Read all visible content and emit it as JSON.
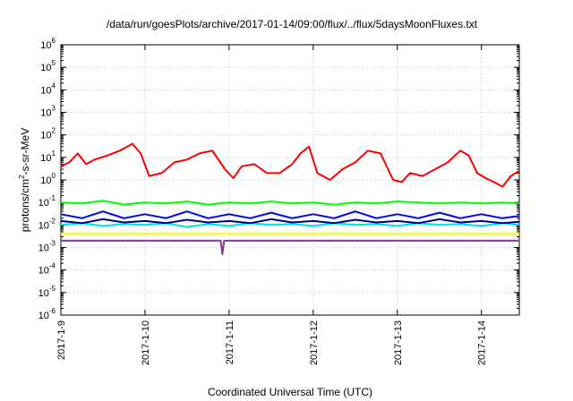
{
  "chart_data": {
    "type": "line",
    "title": "/data/run/goesPlots/archive/2017-01-14/09:00/flux/../flux/5daysMoonFluxes.txt",
    "xlabel": "Coordinated Universal Time (UTC)",
    "ylabel": {
      "base": "protons/cm",
      "sup": "2",
      "rest": "-s-sr-MeV"
    },
    "yscale": "log",
    "ylim": [
      1e-06,
      1000000.0
    ],
    "xlim": [
      0,
      5.45
    ],
    "y_ticks": [
      {
        "exp": "-6",
        "value": -6
      },
      {
        "exp": "-5",
        "value": -5
      },
      {
        "exp": "-4",
        "value": -4
      },
      {
        "exp": "-3",
        "value": -3
      },
      {
        "exp": "-2",
        "value": -2
      },
      {
        "exp": "-1",
        "value": -1
      },
      {
        "exp": "0",
        "value": 0
      },
      {
        "exp": "1",
        "value": 1
      },
      {
        "exp": "2",
        "value": 2
      },
      {
        "exp": "3",
        "value": 3
      },
      {
        "exp": "4",
        "value": 4
      },
      {
        "exp": "5",
        "value": 5
      },
      {
        "exp": "6",
        "value": 6
      }
    ],
    "y_tick_base": "10",
    "x_ticks": [
      {
        "label": "2017-1-9",
        "value": 0
      },
      {
        "label": "2017-1-10",
        "value": 1
      },
      {
        "label": "2017-1-11",
        "value": 2
      },
      {
        "label": "2017-1-12",
        "value": 3
      },
      {
        "label": "2017-1-13",
        "value": 4
      },
      {
        "label": "2017-1-14",
        "value": 5
      }
    ],
    "grid": true,
    "series": [
      {
        "color": "#ff0000",
        "x": [
          0,
          0.1,
          0.2,
          0.3,
          0.4,
          0.55,
          0.7,
          0.85,
          0.95,
          1.05,
          1.2,
          1.35,
          1.5,
          1.65,
          1.8,
          1.95,
          2.05,
          2.15,
          2.3,
          2.45,
          2.6,
          2.75,
          2.85,
          2.95,
          3.05,
          3.2,
          3.35,
          3.5,
          3.65,
          3.8,
          3.95,
          4.05,
          4.15,
          4.3,
          4.45,
          4.6,
          4.75,
          4.85,
          4.95,
          5.05,
          5.15,
          5.25,
          5.35,
          5.45
        ],
        "values": [
          4,
          6,
          15,
          5,
          8,
          12,
          20,
          40,
          15,
          1.5,
          2,
          6,
          8,
          15,
          20,
          3,
          1.2,
          4,
          5,
          2,
          2,
          5,
          15,
          30,
          2,
          1,
          3,
          6,
          20,
          15,
          1,
          0.8,
          2,
          1.5,
          3,
          6,
          20,
          12,
          2,
          1.2,
          0.8,
          0.5,
          1.5,
          2.5
        ]
      },
      {
        "color": "#00ff00",
        "x": [
          0,
          0.25,
          0.5,
          0.75,
          1,
          1.25,
          1.5,
          1.75,
          2,
          2.25,
          2.5,
          2.75,
          3,
          3.25,
          3.5,
          3.75,
          4,
          4.25,
          4.5,
          4.75,
          5,
          5.25,
          5.45
        ],
        "values": [
          0.1,
          0.09,
          0.12,
          0.08,
          0.1,
          0.09,
          0.11,
          0.08,
          0.1,
          0.09,
          0.11,
          0.09,
          0.1,
          0.08,
          0.1,
          0.09,
          0.11,
          0.1,
          0.09,
          0.1,
          0.09,
          0.1,
          0.09
        ]
      },
      {
        "color": "#00e0e0",
        "x": [
          0,
          0.25,
          0.5,
          0.75,
          1,
          1.25,
          1.5,
          1.75,
          2,
          2.25,
          2.5,
          2.75,
          3,
          3.25,
          3.5,
          3.75,
          4,
          4.25,
          4.5,
          4.75,
          5,
          5.25,
          5.45
        ],
        "values": [
          0.01,
          0.012,
          0.009,
          0.011,
          0.01,
          0.012,
          0.008,
          0.011,
          0.009,
          0.012,
          0.01,
          0.011,
          0.009,
          0.012,
          0.01,
          0.011,
          0.009,
          0.012,
          0.01,
          0.011,
          0.009,
          0.012,
          0.01
        ]
      },
      {
        "color": "#0000ff",
        "x": [
          0,
          0.25,
          0.5,
          0.75,
          1,
          1.25,
          1.5,
          1.75,
          2,
          2.25,
          2.5,
          2.75,
          3,
          3.25,
          3.5,
          3.75,
          4,
          4.25,
          4.5,
          4.75,
          5,
          5.25,
          5.45
        ],
        "values": [
          0.03,
          0.02,
          0.04,
          0.02,
          0.03,
          0.02,
          0.04,
          0.02,
          0.03,
          0.02,
          0.035,
          0.02,
          0.03,
          0.02,
          0.04,
          0.02,
          0.03,
          0.02,
          0.035,
          0.02,
          0.03,
          0.02,
          0.025
        ]
      },
      {
        "color": "#000080",
        "x": [
          0,
          0.25,
          0.5,
          0.75,
          1,
          1.25,
          1.5,
          1.75,
          2,
          2.25,
          2.5,
          2.75,
          3,
          3.25,
          3.5,
          3.75,
          4,
          4.25,
          4.5,
          4.75,
          5,
          5.25,
          5.45
        ],
        "values": [
          0.015,
          0.012,
          0.018,
          0.013,
          0.015,
          0.012,
          0.017,
          0.013,
          0.015,
          0.012,
          0.018,
          0.013,
          0.015,
          0.012,
          0.017,
          0.013,
          0.015,
          0.012,
          0.018,
          0.013,
          0.015,
          0.012,
          0.014
        ]
      },
      {
        "color": "#ffff00",
        "x": [
          0,
          0.5,
          1,
          1.5,
          2,
          2.5,
          3,
          3.5,
          4,
          4.5,
          5,
          5.45
        ],
        "values": [
          0.004,
          0.004,
          0.004,
          0.004,
          0.004,
          0.004,
          0.004,
          0.004,
          0.004,
          0.004,
          0.004,
          0.004
        ]
      },
      {
        "color": "#8b3a8b",
        "x": [
          0,
          0.5,
          1,
          1.5,
          1.9,
          1.92,
          1.94,
          2,
          2.5,
          3,
          3.5,
          4,
          4.5,
          5,
          5.45
        ],
        "values": [
          0.002,
          0.002,
          0.002,
          0.002,
          0.002,
          0.0005,
          0.002,
          0.002,
          0.002,
          0.002,
          0.002,
          0.002,
          0.002,
          0.002,
          0.002
        ]
      }
    ]
  }
}
